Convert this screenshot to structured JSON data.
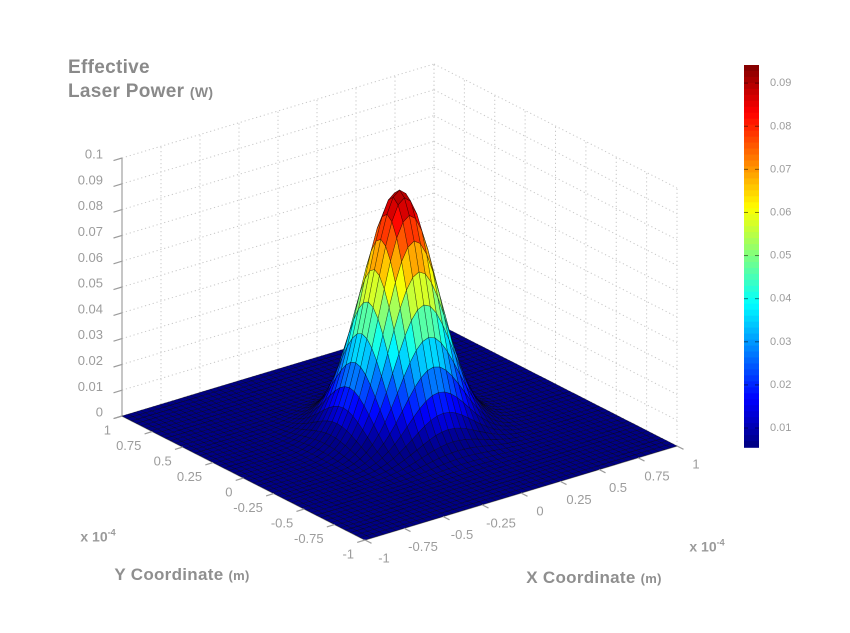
{
  "page": {
    "background": "#ffffff"
  },
  "chart_data": {
    "type": "surface",
    "title": {
      "line1": "Effective",
      "line2": "Laser Power",
      "line2_unit": "(W)"
    },
    "x_axis": {
      "label": "X Coordinate",
      "unit": "(m)",
      "multiplier_base": "x 10",
      "multiplier_exp": "-4",
      "ticks": [
        "-1",
        "-0.75",
        "-0.5",
        "-0.25",
        "0",
        "0.25",
        "0.5",
        "0.75",
        "1"
      ],
      "range": [
        -1,
        1
      ]
    },
    "y_axis": {
      "label": "Y Coordinate",
      "unit": "(m)",
      "multiplier_base": "x 10",
      "multiplier_exp": "-4",
      "ticks": [
        "1",
        "0.75",
        "0.5",
        "0.25",
        "0",
        "-0.25",
        "-0.5",
        "-0.75",
        "-1"
      ],
      "range": [
        -1,
        1
      ]
    },
    "z_axis": {
      "ticks": [
        "0",
        "0.01",
        "0.02",
        "0.03",
        "0.04",
        "0.05",
        "0.06",
        "0.07",
        "0.08",
        "0.09",
        "0.1"
      ],
      "range": [
        0,
        0.1
      ]
    },
    "colorbar": {
      "ticks": [
        "0.01",
        "0.02",
        "0.03",
        "0.04",
        "0.05",
        "0.06",
        "0.07",
        "0.08",
        "0.09"
      ],
      "cmin": 0.0056,
      "cmax": 0.0942,
      "colormap": "jet",
      "levels": 64
    },
    "surface": {
      "model": "gaussian",
      "peak_w": 0.0934,
      "sigma_axis_units": 0.19,
      "center": [
        0,
        0
      ],
      "grid_divisions": 50
    },
    "grid": true,
    "colors": {
      "title_text": "#8a8a8a",
      "axis_label_text": "#8f8f8f",
      "tick_text": "#9c9c9c",
      "grid_line": "#c8c8c8",
      "axis_line": "#a8a8a8",
      "mesh_edge": "rgba(0,0,0,0.55)"
    }
  }
}
